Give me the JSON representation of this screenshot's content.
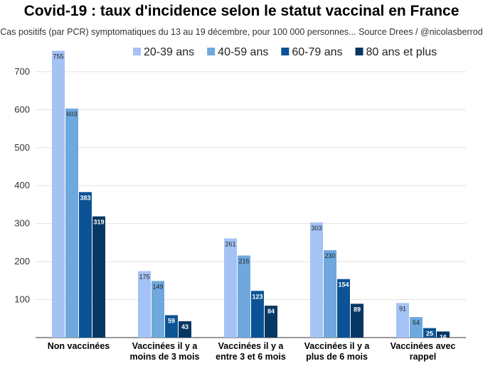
{
  "chart_data": {
    "type": "bar",
    "title": "Covid-19 : taux d'incidence selon le statut vaccinal en France",
    "subtitle": "Cas positifs (par PCR) symptomatiques du 13 au 19 décembre, pour 100 000 personnes... Source Drees / @nicolasberrod",
    "xlabel": "",
    "ylabel": "",
    "ylim": [
      0,
      750
    ],
    "yticks": [
      100,
      200,
      300,
      400,
      500,
      600,
      700
    ],
    "legend_position": "top",
    "categories": [
      [
        "Non vaccinées"
      ],
      [
        "Vaccinées il y a",
        "moins de 3 mois"
      ],
      [
        "Vaccinées il y a",
        "entre 3 et 6 mois"
      ],
      [
        "Vaccinées il y a",
        "plus de 6 mois"
      ],
      [
        "Vaccinées avec",
        "rappel"
      ]
    ],
    "series": [
      {
        "name": "20-39 ans",
        "color": "#a4c2f4",
        "values": [
          755,
          175,
          261,
          303,
          91
        ]
      },
      {
        "name": "40-59 ans",
        "color": "#6fa8dc",
        "values": [
          603,
          149,
          216,
          230,
          54
        ]
      },
      {
        "name": "60-79 ans",
        "color": "#0b5394",
        "values": [
          383,
          59,
          123,
          154,
          25
        ]
      },
      {
        "name": "80 ans et plus",
        "color": "#073763",
        "values": [
          319,
          43,
          84,
          89,
          16
        ]
      }
    ]
  }
}
